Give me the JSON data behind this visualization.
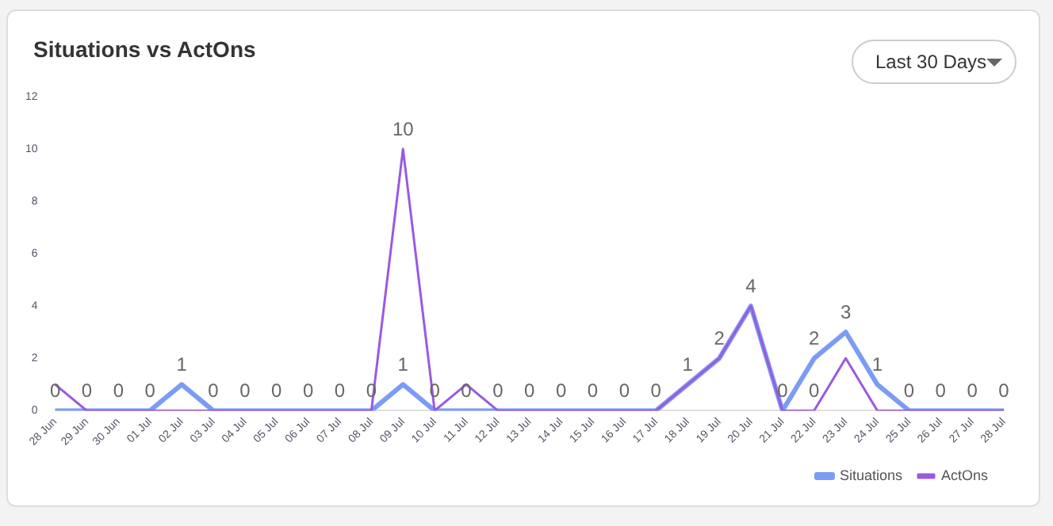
{
  "chart_data": {
    "type": "line",
    "title": "Situations vs ActOns",
    "annotations": [
      "Last 30 Days"
    ],
    "categories": [
      "28 Jun",
      "29 Jun",
      "30 Jun",
      "01 Jul",
      "02 Jul",
      "03 Jul",
      "04 Jul",
      "05 Jul",
      "06 Jul",
      "07 Jul",
      "08 Jul",
      "09 Jul",
      "10 Jul",
      "11 Jul",
      "12 Jul",
      "13 Jul",
      "14 Jul",
      "15 Jul",
      "16 Jul",
      "17 Jul",
      "18 Jul",
      "19 Jul",
      "20 Jul",
      "21 Jul",
      "22 Jul",
      "23 Jul",
      "24 Jul",
      "25 Jul",
      "26 Jul",
      "27 Jul",
      "28 Jul"
    ],
    "series": [
      {
        "name": "Situations",
        "color": "#7b9cf5",
        "values": [
          0,
          0,
          0,
          0,
          1,
          0,
          0,
          0,
          0,
          0,
          0,
          1,
          0,
          0,
          0,
          0,
          0,
          0,
          0,
          0,
          1,
          2,
          4,
          0,
          2,
          3,
          1,
          0,
          0,
          0,
          0
        ],
        "value_labels": [
          "0",
          "0",
          "0",
          "0",
          "1",
          "0",
          "0",
          "0",
          "0",
          "0",
          "0",
          "1",
          "0",
          "0",
          "0",
          "0",
          "0",
          "0",
          "0",
          "0",
          "1",
          "2",
          "4",
          "0",
          "2",
          "3",
          "1",
          "0",
          "0",
          "0",
          "0"
        ]
      },
      {
        "name": "ActOns",
        "color": "#9b59e0",
        "values": [
          1,
          0,
          0,
          0,
          0,
          0,
          0,
          0,
          0,
          0,
          0,
          10,
          0,
          1,
          0,
          0,
          0,
          0,
          0,
          0,
          1,
          2,
          4,
          0,
          0,
          2,
          0,
          0,
          0,
          0,
          0
        ],
        "value_labels": [
          null,
          null,
          null,
          null,
          null,
          null,
          null,
          null,
          null,
          null,
          null,
          "10",
          null,
          null,
          null,
          null,
          null,
          null,
          null,
          null,
          null,
          null,
          null,
          null,
          "0",
          null,
          null,
          null,
          null,
          null,
          null
        ]
      }
    ],
    "ylim": [
      0,
      12
    ],
    "yticks": [
      0,
      2,
      4,
      6,
      8,
      10,
      12
    ],
    "grid": false,
    "legend": "bottom right",
    "marker": "none",
    "line_style": "solid"
  }
}
